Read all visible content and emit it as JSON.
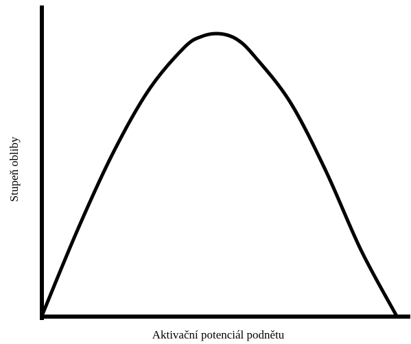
{
  "chart_data": {
    "type": "line",
    "title": "",
    "xlabel": "Aktivační potenciál podnětu",
    "ylabel": "Stupeň obliby",
    "xlim": [
      0,
      100
    ],
    "ylim": [
      0,
      100
    ],
    "grid": false,
    "legend": "none",
    "series": [
      {
        "x": [
          0,
          10,
          20,
          30,
          40,
          45,
          50,
          55,
          60,
          70,
          80,
          90,
          100
        ],
        "y": [
          0,
          30,
          57,
          79,
          94,
          98,
          99,
          97,
          91,
          75,
          51,
          23,
          0
        ]
      }
    ],
    "colors": {
      "line": "#000000",
      "axis": "#000000",
      "background": "#ffffff"
    }
  }
}
